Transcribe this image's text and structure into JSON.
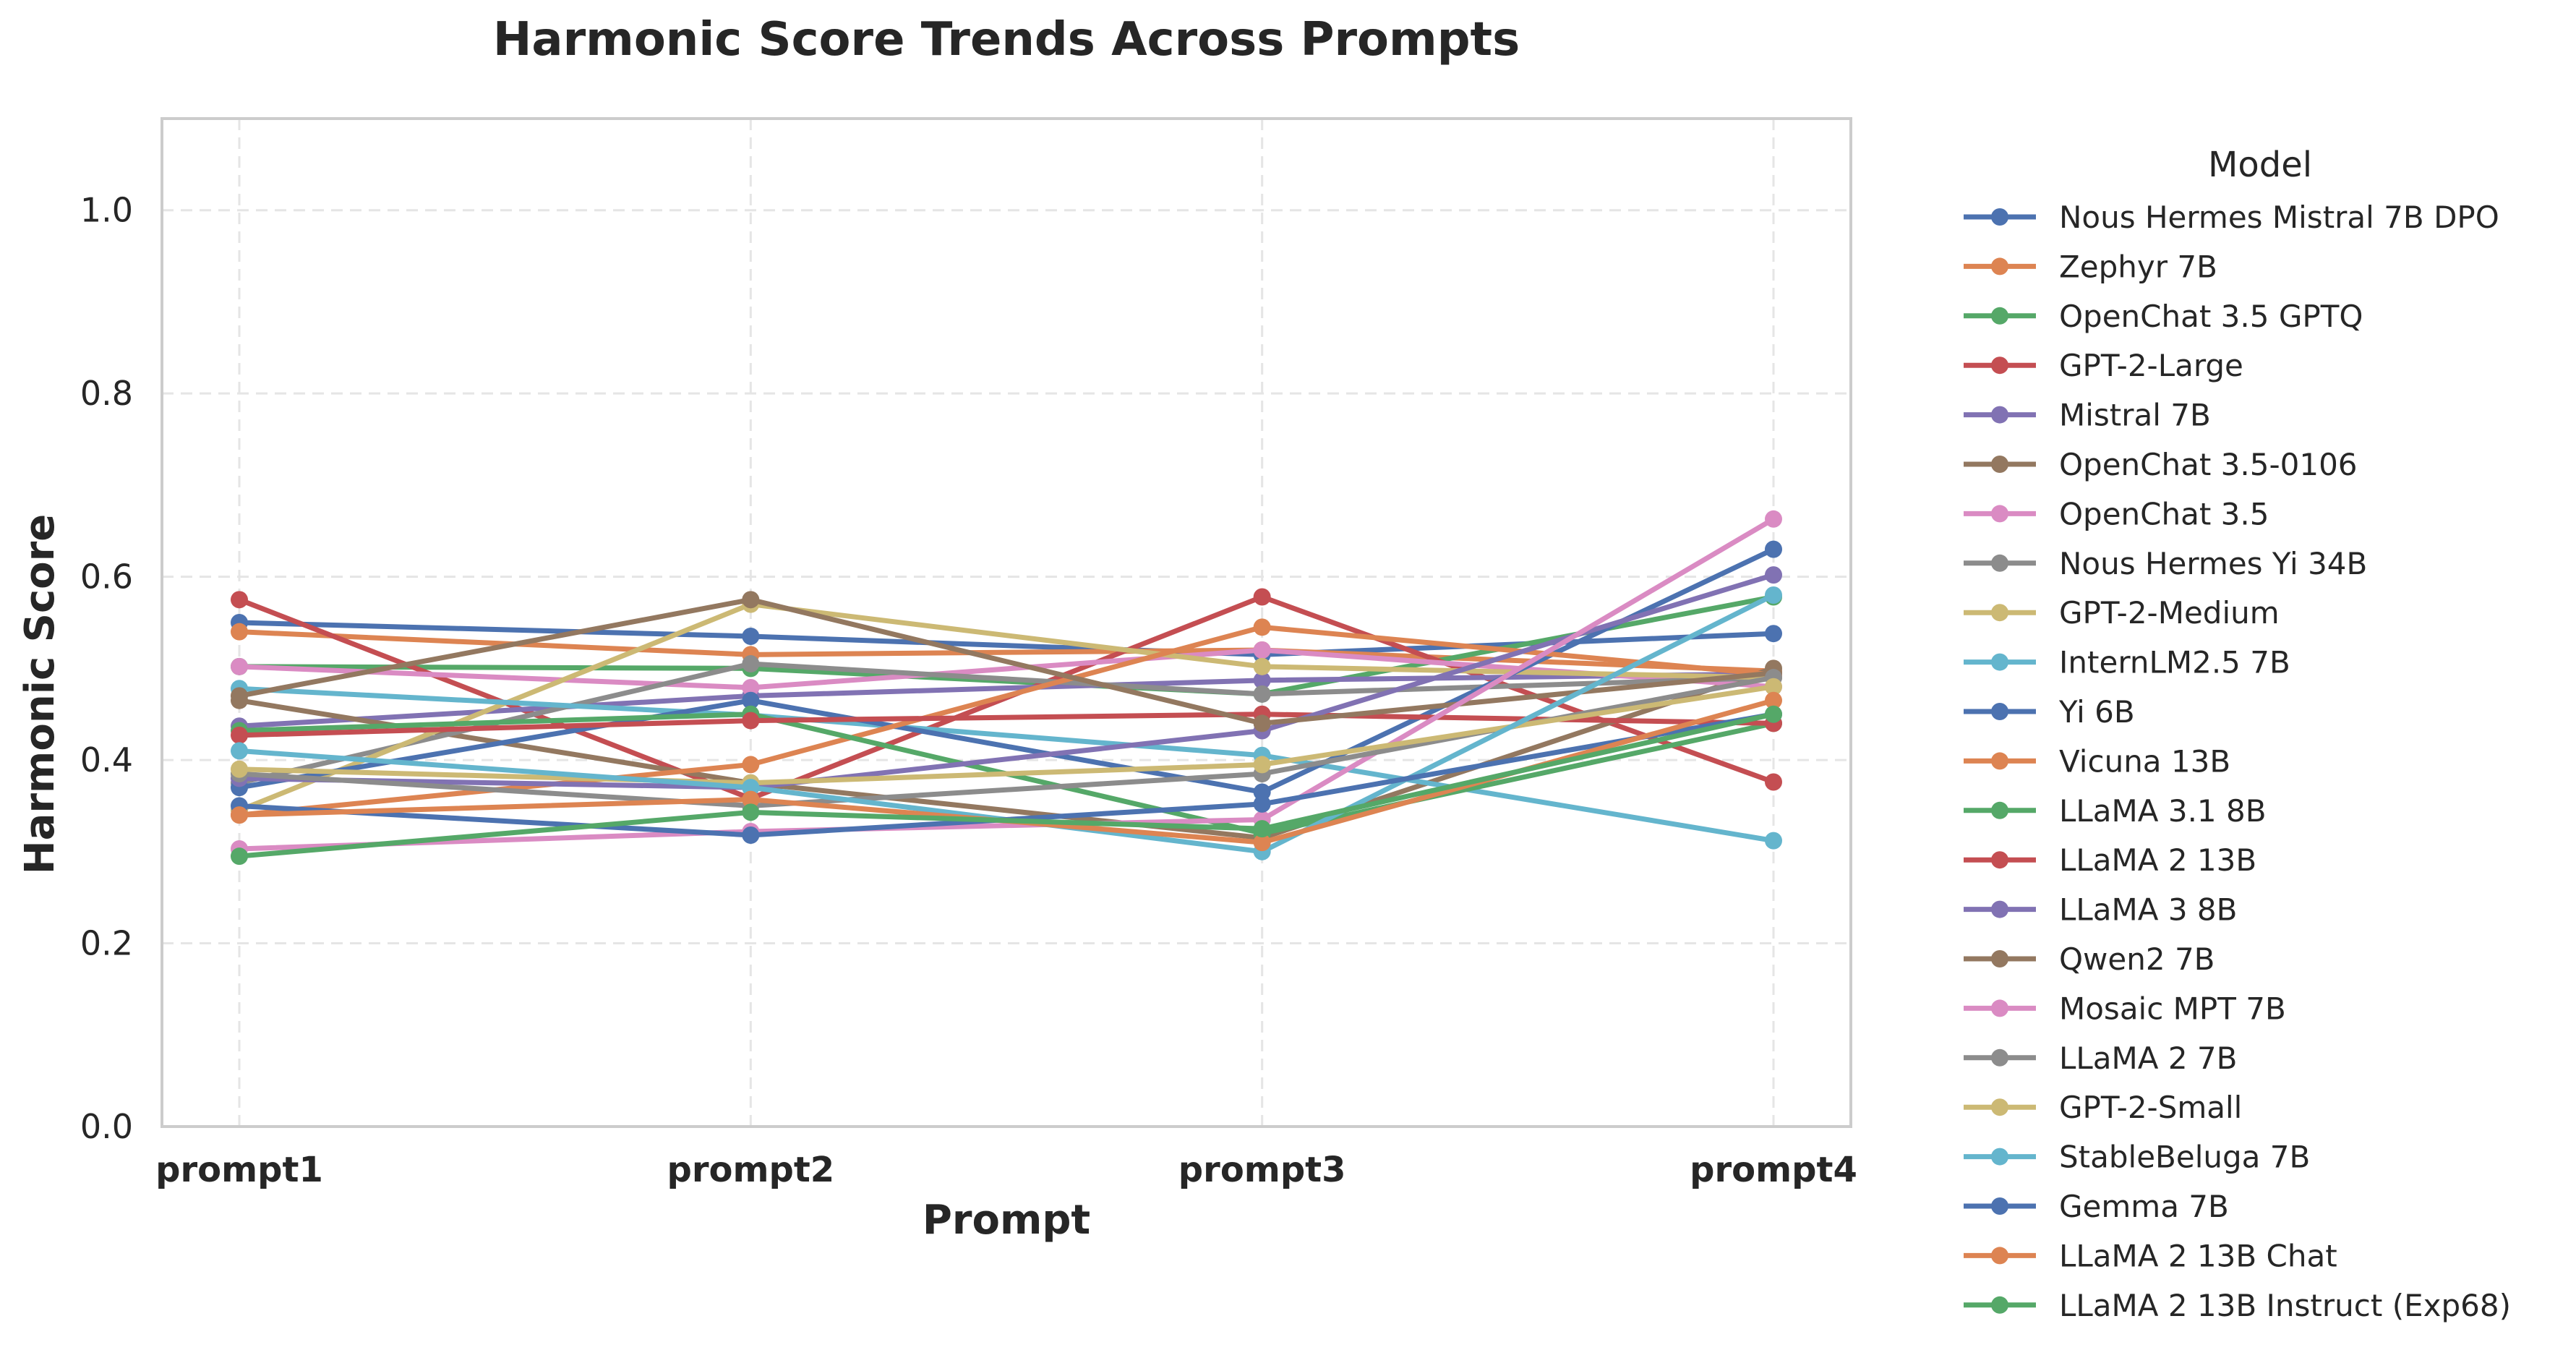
{
  "chart_data": {
    "type": "line",
    "title": "Harmonic Score Trends Across Prompts",
    "xlabel": "Prompt",
    "ylabel": "Harmonic Score",
    "categories": [
      "prompt1",
      "prompt2",
      "prompt3",
      "prompt4"
    ],
    "ylim": [
      0.0,
      1.1
    ],
    "yticks": [
      0.0,
      0.2,
      0.4,
      0.6,
      0.8,
      1.0
    ],
    "ytick_labels": [
      "0.0",
      "0.2",
      "0.4",
      "0.6",
      "0.8",
      "1.0"
    ],
    "grid": true,
    "legend_title": "Model",
    "legend_position": "outside-right",
    "series": [
      {
        "name": "Nous Hermes Mistral 7B DPO",
        "color": "#4c72b0",
        "values": [
          0.55,
          0.535,
          0.515,
          0.538
        ]
      },
      {
        "name": "Zephyr 7B",
        "color": "#dd8452",
        "values": [
          0.54,
          0.515,
          0.52,
          0.497
        ]
      },
      {
        "name": "OpenChat 3.5 GPTQ",
        "color": "#55a868",
        "values": [
          0.502,
          0.5,
          0.472,
          0.578
        ]
      },
      {
        "name": "GPT-2-Large",
        "color": "#c44e52",
        "values": [
          0.575,
          0.358,
          0.578,
          0.376
        ]
      },
      {
        "name": "Mistral 7B",
        "color": "#8172b3",
        "values": [
          0.437,
          0.47,
          0.487,
          0.494
        ]
      },
      {
        "name": "OpenChat 3.5-0106",
        "color": "#937860",
        "values": [
          0.465,
          0.375,
          0.315,
          0.5
        ]
      },
      {
        "name": "OpenChat 3.5",
        "color": "#da8bc3",
        "values": [
          0.502,
          0.479,
          0.52,
          0.48
        ]
      },
      {
        "name": "Nous Hermes Yi 34B",
        "color": "#8c8c8c",
        "values": [
          0.375,
          0.505,
          0.472,
          0.49
        ]
      },
      {
        "name": "GPT-2-Medium",
        "color": "#ccb974",
        "values": [
          0.345,
          0.57,
          0.502,
          0.49
        ]
      },
      {
        "name": "InternLM2.5 7B",
        "color": "#64b5cd",
        "values": [
          0.478,
          0.449,
          0.405,
          0.312
        ]
      },
      {
        "name": "Yi 6B",
        "color": "#4c72b0",
        "values": [
          0.37,
          0.465,
          0.365,
          0.63
        ]
      },
      {
        "name": "Vicuna 13B",
        "color": "#dd8452",
        "values": [
          0.34,
          0.395,
          0.545,
          0.493
        ]
      },
      {
        "name": "LLaMA 3.1 8B",
        "color": "#55a868",
        "values": [
          0.432,
          0.45,
          0.32,
          0.44
        ]
      },
      {
        "name": "LLaMA 2 13B",
        "color": "#c44e52",
        "values": [
          0.427,
          0.443,
          0.45,
          0.44
        ]
      },
      {
        "name": "LLaMA 3 8B",
        "color": "#8172b3",
        "values": [
          0.38,
          0.37,
          0.432,
          0.602
        ]
      },
      {
        "name": "Qwen2 7B",
        "color": "#937860",
        "values": [
          0.47,
          0.575,
          0.44,
          0.495
        ]
      },
      {
        "name": "Mosaic MPT 7B",
        "color": "#da8bc3",
        "values": [
          0.303,
          0.322,
          0.335,
          0.663
        ]
      },
      {
        "name": "LLaMA 2 7B",
        "color": "#8c8c8c",
        "values": [
          0.385,
          0.35,
          0.385,
          0.49
        ]
      },
      {
        "name": "GPT-2-Small",
        "color": "#ccb974",
        "values": [
          0.39,
          0.375,
          0.395,
          0.48
        ]
      },
      {
        "name": "StableBeluga 7B",
        "color": "#64b5cd",
        "values": [
          0.41,
          0.37,
          0.3,
          0.58
        ]
      },
      {
        "name": "Gemma 7B",
        "color": "#4c72b0",
        "values": [
          0.35,
          0.318,
          0.352,
          0.45
        ]
      },
      {
        "name": "LLaMA 2 13B Chat",
        "color": "#dd8452",
        "values": [
          0.34,
          0.357,
          0.31,
          0.465
        ]
      },
      {
        "name": "LLaMA 2 13B Instruct (Exp68)",
        "color": "#55a868",
        "values": [
          0.295,
          0.343,
          0.325,
          0.45
        ]
      }
    ]
  }
}
